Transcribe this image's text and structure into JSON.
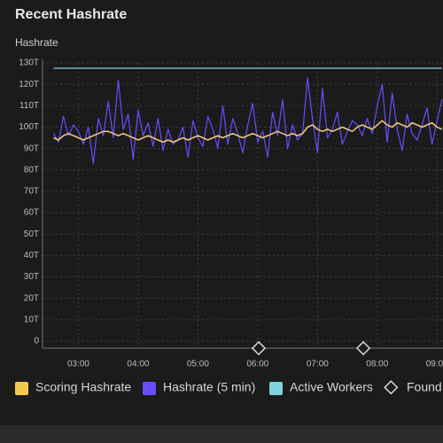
{
  "chart_data": {
    "type": "line",
    "title": "Recent Hashrate",
    "y_label": "Hashrate",
    "ylim": [
      0,
      130
    ],
    "yticks": [
      0,
      {
        "value": 10,
        "label": "10T"
      },
      {
        "value": 20,
        "label": "20T"
      },
      {
        "value": 30,
        "label": "30T"
      },
      {
        "value": 40,
        "label": "40T"
      },
      {
        "value": 50,
        "label": "50T"
      },
      {
        "value": 60,
        "label": "60T"
      },
      {
        "value": 70,
        "label": "70T"
      },
      {
        "value": 80,
        "label": "80T"
      },
      {
        "value": 90,
        "label": "90T"
      },
      {
        "value": 100,
        "label": "100T"
      },
      {
        "value": 110,
        "label": "110T"
      },
      {
        "value": 120,
        "label": "120T"
      },
      {
        "value": 130,
        "label": "130T"
      }
    ],
    "xlim": [
      144,
      546
    ],
    "xticks": [
      {
        "value": 180,
        "label": "03:00"
      },
      {
        "value": 240,
        "label": "04:00"
      },
      {
        "value": 300,
        "label": "05:00"
      },
      {
        "value": 360,
        "label": "06:00"
      },
      {
        "value": 420,
        "label": "07:00"
      },
      {
        "value": 480,
        "label": "08:00"
      },
      {
        "value": 540,
        "label": "09:00"
      }
    ],
    "grid": true,
    "x": [
      155,
      160,
      165,
      170,
      175,
      180,
      185,
      190,
      195,
      200,
      205,
      210,
      215,
      220,
      225,
      230,
      235,
      240,
      245,
      250,
      255,
      260,
      265,
      270,
      275,
      280,
      285,
      290,
      295,
      300,
      305,
      310,
      315,
      320,
      325,
      330,
      335,
      340,
      345,
      350,
      355,
      360,
      365,
      370,
      375,
      380,
      385,
      390,
      395,
      400,
      405,
      410,
      415,
      420,
      425,
      430,
      435,
      440,
      445,
      450,
      455,
      460,
      465,
      470,
      475,
      480,
      485,
      490,
      495,
      500,
      505,
      510,
      515,
      520,
      525,
      530,
      535,
      540,
      545
    ],
    "series": [
      {
        "name": "Scoring Hashrate",
        "color": "#f2c94c",
        "line_color": "#e9c777",
        "values": [
          95,
          94,
          96,
          97,
          96,
          95,
          94,
          95,
          96,
          97,
          98,
          98,
          97,
          96,
          97,
          96,
          95,
          94,
          95,
          96,
          95,
          94,
          93,
          94,
          93,
          94,
          95,
          94,
          95,
          96,
          95,
          94,
          95,
          96,
          95,
          96,
          97,
          96,
          95,
          96,
          97,
          96,
          95,
          96,
          97,
          98,
          97,
          96,
          97,
          96,
          97,
          100,
          101,
          99,
          98,
          99,
          98,
          99,
          100,
          99,
          98,
          100,
          101,
          100,
          99,
          101,
          103,
          101,
          100,
          102,
          101,
          100,
          102,
          101,
          100,
          101,
          102,
          100,
          99
        ]
      },
      {
        "name": "Hashrate (5 min)",
        "color": "#6a4cff",
        "values": [
          97,
          93,
          105,
          96,
          101,
          98,
          92,
          100,
          83,
          104,
          96,
          112,
          95,
          122,
          99,
          106,
          85,
          108,
          96,
          102,
          91,
          104,
          89,
          99,
          92,
          94,
          100,
          86,
          103,
          95,
          91,
          105,
          99,
          90,
          110,
          92,
          104,
          97,
          88,
          101,
          111,
          93,
          98,
          86,
          107,
          96,
          113,
          90,
          101,
          94,
          97,
          123,
          104,
          88,
          118,
          95,
          99,
          107,
          92,
          98,
          103,
          101,
          96,
          104,
          97,
          110,
          120,
          93,
          116,
          99,
          89,
          106,
          97,
          94,
          101,
          109,
          92,
          103,
          113
        ]
      },
      {
        "name": "Active Workers",
        "color": "#7fd3dc",
        "x": [
          155,
          545
        ],
        "values": [
          127.5,
          127.5
        ]
      },
      {
        "name": "Found Blocks",
        "color": "#d9d9d9",
        "marker": "diamond",
        "x": [
          361,
          466
        ]
      }
    ]
  }
}
